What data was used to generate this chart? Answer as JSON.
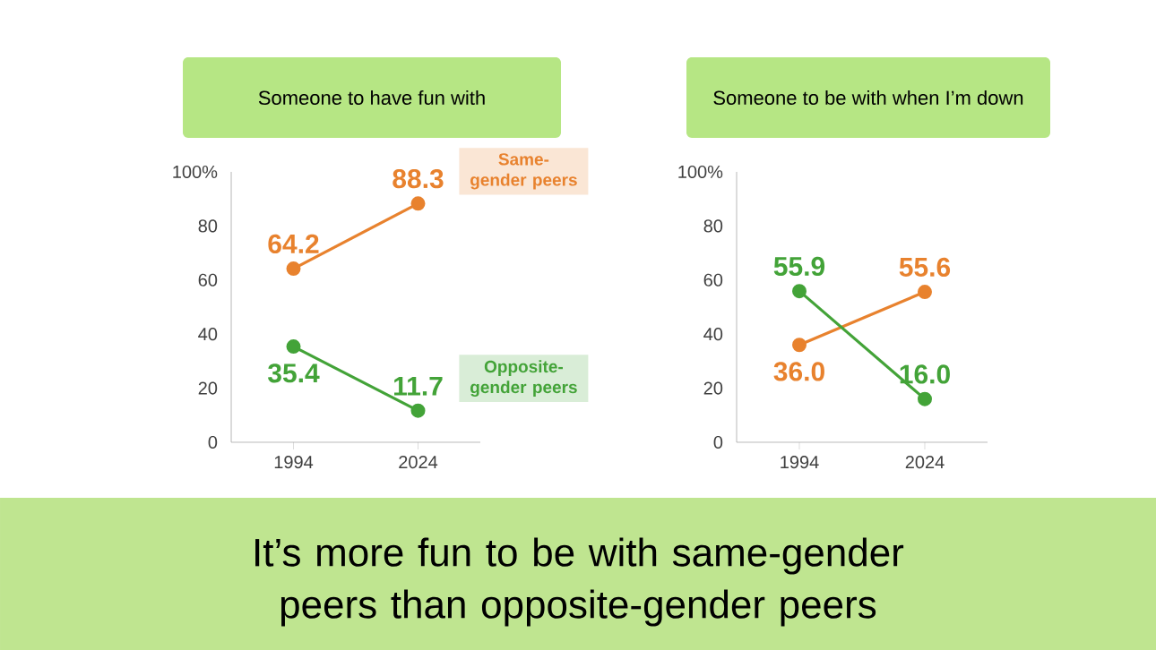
{
  "chart_data": [
    {
      "type": "line",
      "title": "Someone to have fun with",
      "categories": [
        "1994",
        "2024"
      ],
      "ylim": [
        0,
        100
      ],
      "yticks": [
        0,
        20,
        40,
        60,
        80,
        {
          "value": 100,
          "label": "100%"
        }
      ],
      "marker": "circle",
      "series": [
        {
          "name": "Same-gender peers",
          "color": "#e8822e",
          "values": [
            64.2,
            88.3
          ],
          "value_labels": [
            "64.2",
            "88.3"
          ]
        },
        {
          "name": "Opposite-gender peers",
          "color": "#43a338",
          "values": [
            35.4,
            11.7
          ],
          "value_labels": [
            "35.4",
            "11.7"
          ]
        }
      ]
    },
    {
      "type": "line",
      "title": "Someone to be with when I’m down",
      "categories": [
        "1994",
        "2024"
      ],
      "ylim": [
        0,
        100
      ],
      "yticks": [
        0,
        20,
        40,
        60,
        80,
        {
          "value": 100,
          "label": "100%"
        }
      ],
      "marker": "circle",
      "series": [
        {
          "color": "#e8822e",
          "values": [
            36.0,
            55.6
          ],
          "value_labels": [
            "36.0",
            "55.6"
          ]
        },
        {
          "color": "#43a338",
          "values": [
            55.9,
            16.0
          ],
          "value_labels": [
            "55.9",
            "16.0"
          ]
        }
      ]
    },
    {
      "type": "other",
      "title": "It’s more fun to be with same-gender peers than opposite-gender peers"
    }
  ]
}
